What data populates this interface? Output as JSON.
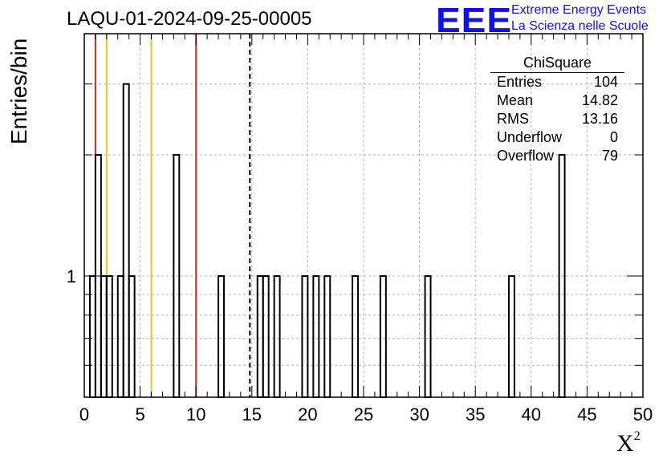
{
  "title": "LAQU-01-2024-09-25-00005",
  "logo": {
    "mark": "EEE",
    "line1": "Extreme Energy Events",
    "line2": "La Scienza nelle Scuole",
    "color": "#1010ee"
  },
  "stats": {
    "name": "ChiSquare",
    "rows": [
      {
        "label": "Entries",
        "value": "104"
      },
      {
        "label": "Mean",
        "value": "14.82"
      },
      {
        "label": "RMS",
        "value": "13.16"
      },
      {
        "label": "Underflow",
        "value": "0"
      },
      {
        "label": "Overflow",
        "value": "79"
      }
    ]
  },
  "chart_data": {
    "type": "bar",
    "title": "LAQU-01-2024-09-25-00005",
    "xlabel": "X",
    "xlabel_superscript": "2",
    "ylabel": "Entries/bin",
    "xlim": [
      0,
      50
    ],
    "ylim": [
      0.5,
      4
    ],
    "yscale": "log",
    "grid": true,
    "bin_width": 0.5,
    "x_ticks": [
      "0",
      "5",
      "10",
      "15",
      "20",
      "25",
      "30",
      "35",
      "40",
      "45",
      "50"
    ],
    "y_tick_labels": [
      "1"
    ],
    "bins": [
      {
        "x": 0.5,
        "count": 1
      },
      {
        "x": 1.0,
        "count": 2
      },
      {
        "x": 1.5,
        "count": 1
      },
      {
        "x": 2.0,
        "count": 1
      },
      {
        "x": 3.0,
        "count": 1
      },
      {
        "x": 3.5,
        "count": 3
      },
      {
        "x": 4.0,
        "count": 1
      },
      {
        "x": 8.0,
        "count": 2
      },
      {
        "x": 12.0,
        "count": 1
      },
      {
        "x": 15.5,
        "count": 1
      },
      {
        "x": 16.0,
        "count": 1
      },
      {
        "x": 17.0,
        "count": 1
      },
      {
        "x": 19.5,
        "count": 1
      },
      {
        "x": 20.5,
        "count": 1
      },
      {
        "x": 21.5,
        "count": 1
      },
      {
        "x": 24.0,
        "count": 1
      },
      {
        "x": 26.5,
        "count": 1
      },
      {
        "x": 30.5,
        "count": 1
      },
      {
        "x": 38.0,
        "count": 1
      },
      {
        "x": 42.5,
        "count": 2
      }
    ],
    "vlines": [
      {
        "x": 1,
        "color": "#dd2222",
        "style": "solid"
      },
      {
        "x": 2,
        "color": "#f0c020",
        "style": "solid"
      },
      {
        "x": 6,
        "color": "#f0c020",
        "style": "solid"
      },
      {
        "x": 10,
        "color": "#dd2222",
        "style": "solid"
      },
      {
        "x": 14.82,
        "color": "#000000",
        "style": "dashed"
      }
    ]
  }
}
